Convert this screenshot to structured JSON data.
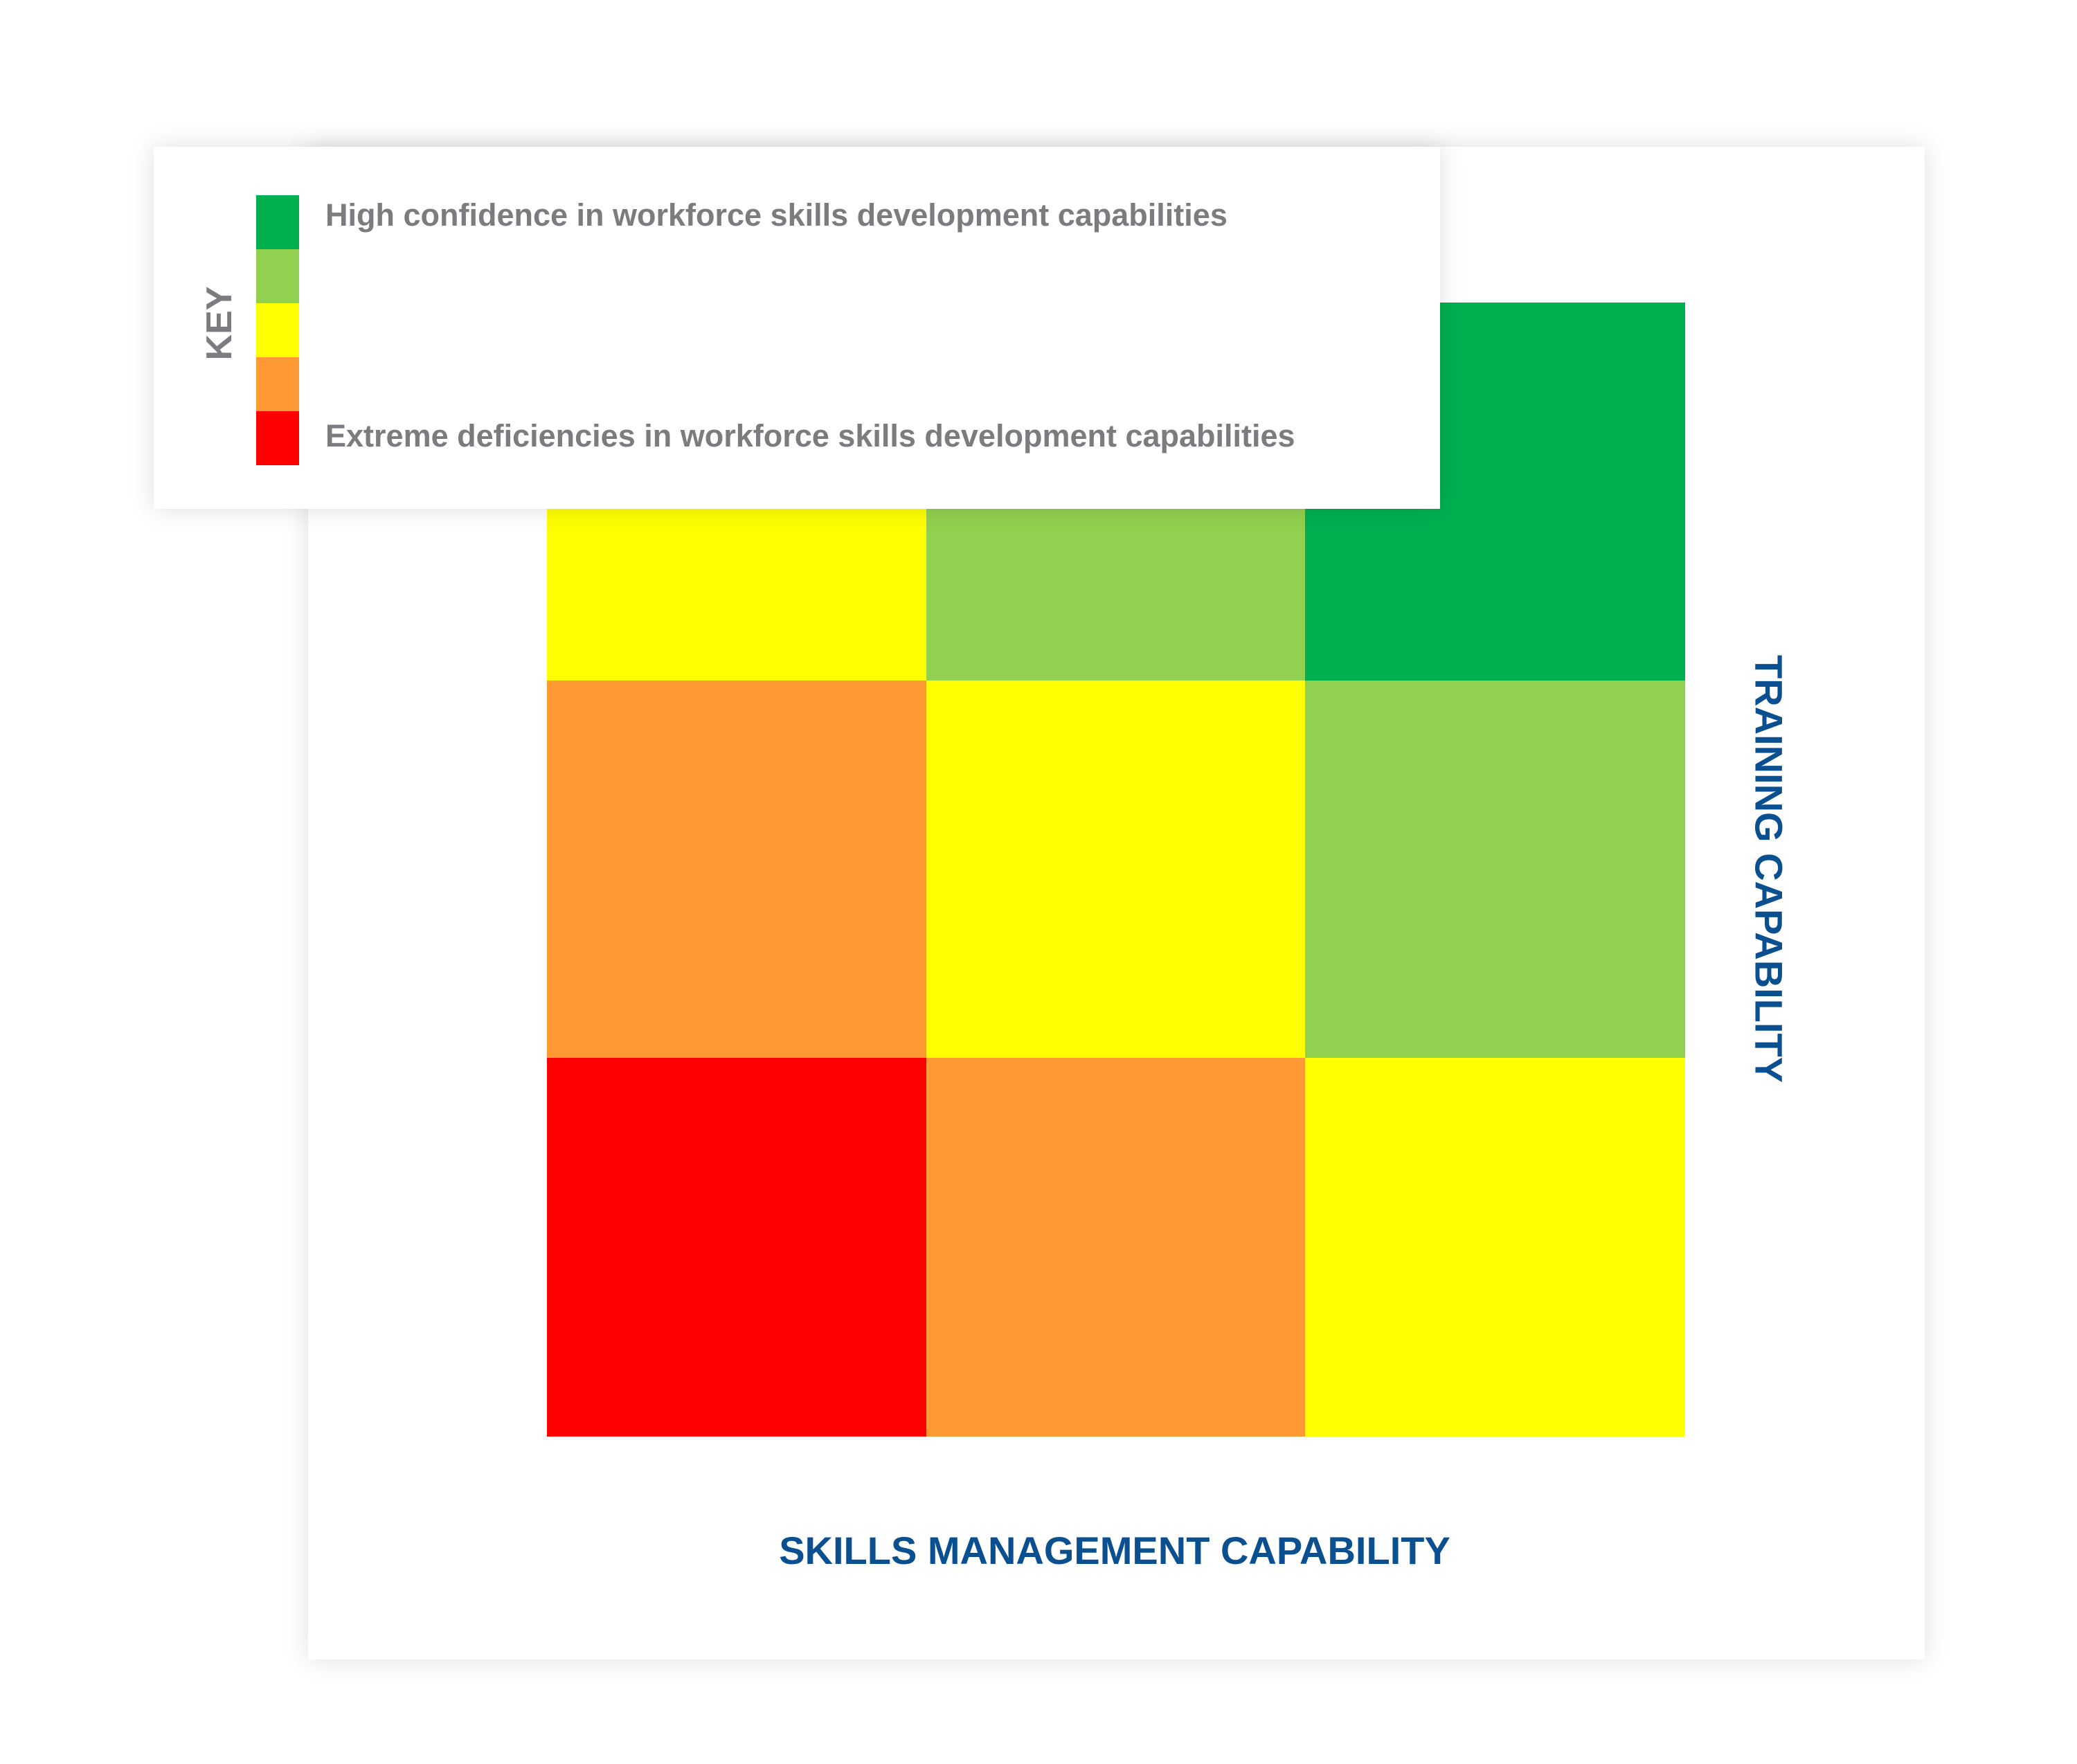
{
  "diagram": {
    "x_axis_label": "SKILLS MANAGEMENT CAPABILITY",
    "y_axis_label": "TRAINING CAPABILITY",
    "colors": {
      "dark_green": "#00b04f",
      "light_green": "#92d050",
      "yellow": "#ffff00",
      "orange": "#ff9933",
      "red": "#ff0000"
    },
    "matrix_rows_top_to_bottom": [
      [
        "yellow",
        "light_green",
        "dark_green"
      ],
      [
        "orange",
        "yellow",
        "light_green"
      ],
      [
        "red",
        "orange",
        "yellow"
      ]
    ]
  },
  "key": {
    "title": "KEY",
    "swatches_top_to_bottom": [
      "dark_green",
      "light_green",
      "yellow",
      "orange",
      "red"
    ],
    "top_label": "High confidence in workforce skills development capabilities",
    "bottom_label": "Extreme deficiencies in workforce skills development capabilities"
  }
}
